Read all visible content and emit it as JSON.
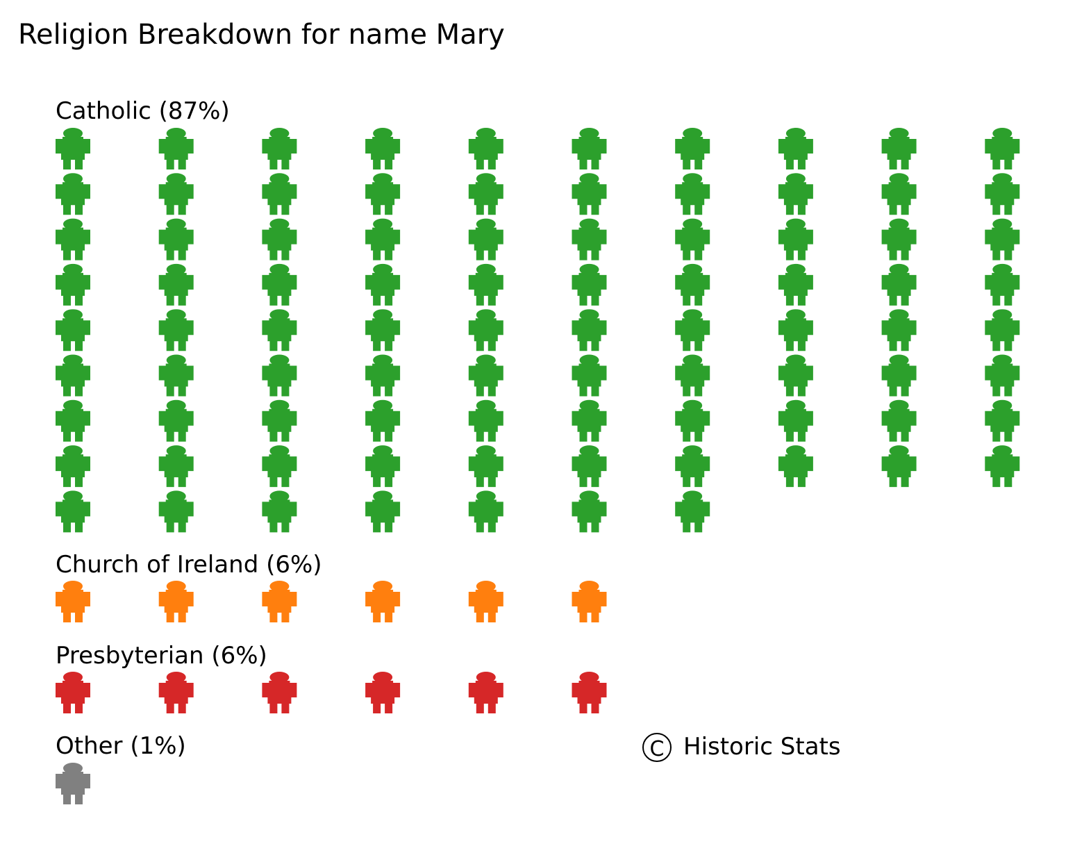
{
  "chart_data": {
    "type": "pictogram",
    "title": "Religion Breakdown for name Mary",
    "icon": "person-icon",
    "icons_per_row": 10,
    "groups": [
      {
        "label": "Catholic (87%)",
        "name": "Catholic",
        "percent": 87,
        "count": 87,
        "color": "#2ca02c"
      },
      {
        "label": "Church of Ireland (6%)",
        "name": "Church of Ireland",
        "percent": 6,
        "count": 6,
        "color": "#ff7f0e"
      },
      {
        "label": "Presbyterian (6%)",
        "name": "Presbyterian",
        "percent": 6,
        "count": 6,
        "color": "#d62728"
      },
      {
        "label": "Other (1%)",
        "name": "Other",
        "percent": 1,
        "count": 1,
        "color": "#808080"
      }
    ],
    "credit": {
      "symbol": "C",
      "text": "Historic Stats"
    }
  }
}
